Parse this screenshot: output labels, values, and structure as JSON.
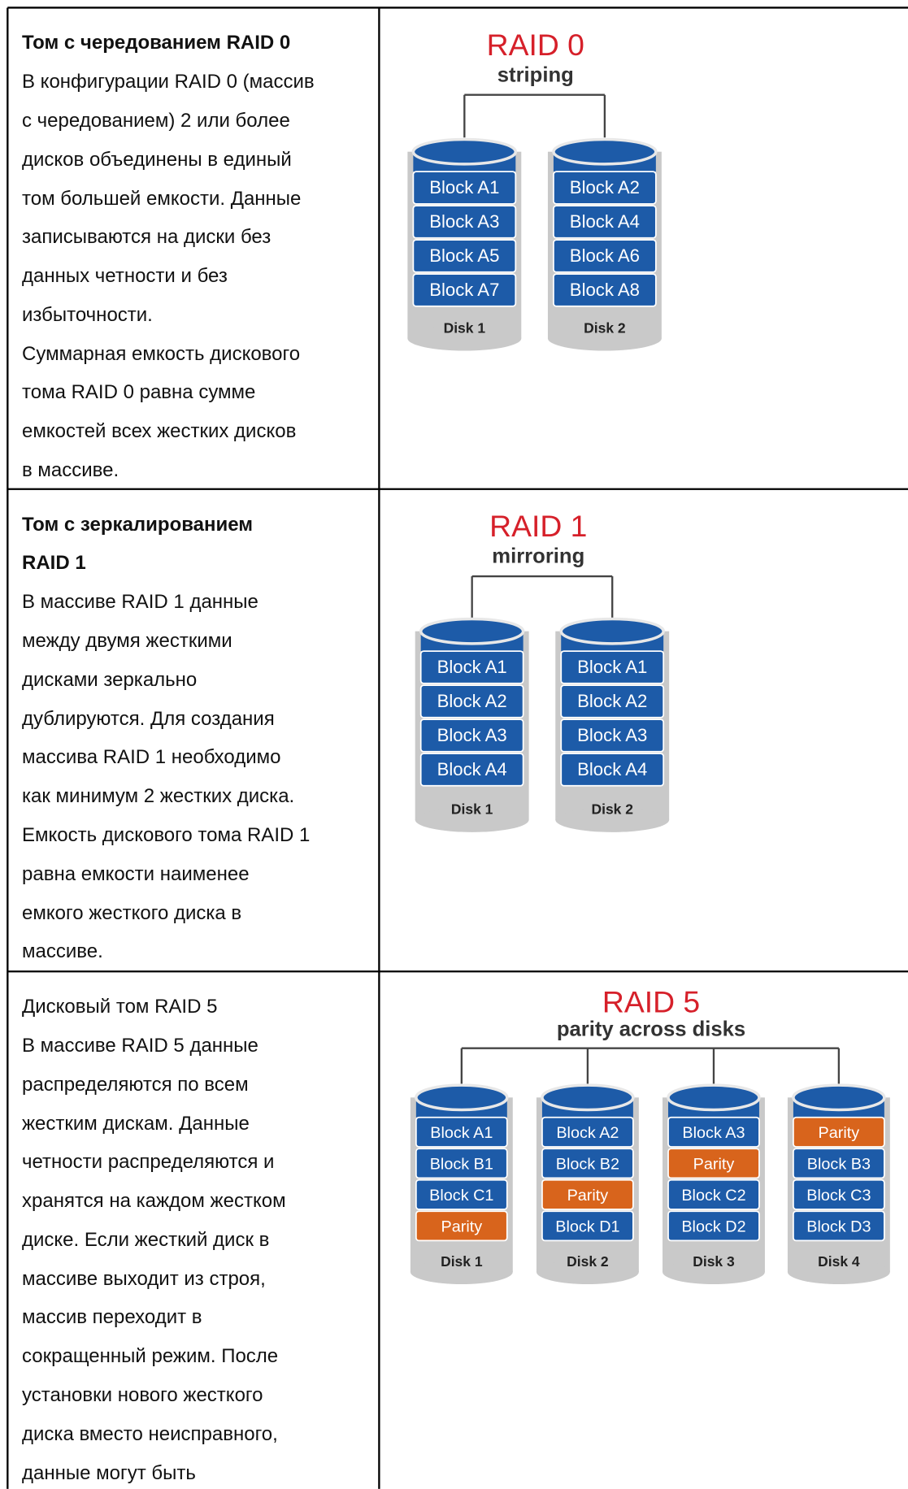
{
  "rows": [
    {
      "title_lines": [
        "Том с чередованием RAID 0"
      ],
      "title_bold": true,
      "lines": [
        "В конфигурации RAID 0 (массив",
        "с чередованием) 2 или более",
        "дисков объединены в единый",
        "том большей емкости. Данные",
        "записываются на диски без",
        "данных четности и без",
        "избыточности.",
        "Суммарная емкость дискового",
        "тома RAID 0 равна сумме",
        "емкостей всех жестких дисков",
        "в массиве."
      ],
      "diagram": {
        "title": "RAID 0",
        "subtitle": "striping",
        "disks": [
          {
            "label": "Disk 1",
            "blocks": [
              "Block A1",
              "Block A3",
              "Block A5",
              "Block A7"
            ]
          },
          {
            "label": "Disk 2",
            "blocks": [
              "Block A2",
              "Block A4",
              "Block A6",
              "Block A8"
            ]
          }
        ]
      }
    },
    {
      "title_lines": [
        "Том с зеркалированием",
        "RAID 1"
      ],
      "title_bold": true,
      "lines": [
        "В массиве RAID 1 данные",
        "между двумя жесткими",
        "дисками зеркально",
        "дублируются. Для создания",
        "массива RAID 1 необходимо",
        "как минимум 2 жестких диска.",
        "Емкость дискового тома RAID 1",
        "равна емкости наименее",
        "емкого жесткого диска в",
        "массиве."
      ],
      "diagram": {
        "title": "RAID 1",
        "subtitle": "mirroring",
        "disks": [
          {
            "label": "Disk 1",
            "blocks": [
              "Block A1",
              "Block A2",
              "Block A3",
              "Block A4"
            ]
          },
          {
            "label": "Disk 2",
            "blocks": [
              "Block A1",
              "Block A2",
              "Block A3",
              "Block A4"
            ]
          }
        ]
      }
    },
    {
      "title_lines": [
        "Дисковый том RAID 5"
      ],
      "title_bold": false,
      "lines": [
        "В массиве RAID 5 данные",
        "распределяются по всем",
        "жестким дискам. Данные",
        "четности распределяются и",
        "хранятся на каждом жестком",
        "диске. Если жесткий диск в",
        "массиве выходит из строя,",
        "массив переходит в",
        "сокращенный режим. После",
        "установки нового жесткого",
        "диска вместо неисправного,",
        "данные могут быть"
      ],
      "diagram": {
        "title": "RAID 5",
        "subtitle": "parity across disks",
        "disks": [
          {
            "label": "Disk 1",
            "blocks": [
              "Block A1",
              "Block B1",
              "Block C1",
              "Parity"
            ],
            "parity_index": 3
          },
          {
            "label": "Disk 2",
            "blocks": [
              "Block A2",
              "Block B2",
              "Parity",
              "Block D1"
            ],
            "parity_index": 2
          },
          {
            "label": "Disk 3",
            "blocks": [
              "Block A3",
              "Parity",
              "Block C2",
              "Block D2"
            ],
            "parity_index": 1
          },
          {
            "label": "Disk 4",
            "blocks": [
              "Parity",
              "Block B3",
              "Block C3",
              "Block D3"
            ],
            "parity_index": 0
          }
        ]
      }
    }
  ],
  "block_color": "#1d5ba8",
  "parity_color": "#d8641c",
  "title_color": "#d6202a"
}
